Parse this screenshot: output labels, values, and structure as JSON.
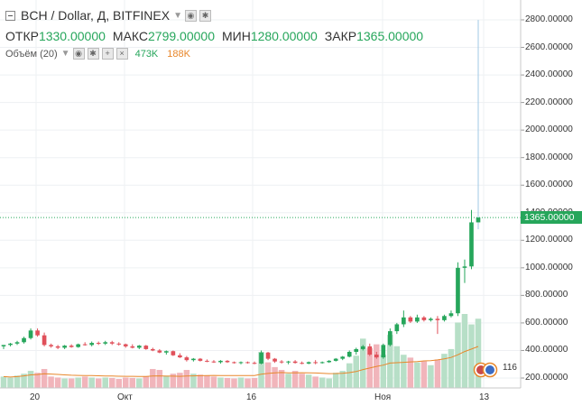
{
  "header": {
    "symbol_title": "BCH / Dollar, Д, BITFINEX",
    "ohlc": [
      {
        "label": "ОТКР",
        "value": "1330.00000"
      },
      {
        "label": "МАКС",
        "value": "2799.00000"
      },
      {
        "label": "МИН",
        "value": "1280.00000"
      },
      {
        "label": "ЗАКР",
        "value": "1365.00000"
      }
    ]
  },
  "volume": {
    "title": "Объём (20)",
    "value1": "473K",
    "value2": "188K"
  },
  "icons": {
    "collapse": "minus-square-icon",
    "caret": "chevron-down-icon",
    "eye": "eye-icon",
    "settings": "gear-icon",
    "plus": "plus-icon",
    "close": "close-icon",
    "events": "event-flag-icon"
  },
  "colors": {
    "up": "#26a65b",
    "down": "#e0505a",
    "vol_up": "#b7dfc7",
    "vol_down": "#f1b5bb",
    "ma": "#e8872b",
    "grid": "#eef0f3"
  },
  "price_axis": {
    "labels": [
      "2800.00000",
      "2600.00000",
      "2400.00000",
      "2200.00000",
      "2000.00000",
      "1800.00000",
      "1600.00000",
      "1400.00000",
      "1200.00000",
      "1000.00000",
      "800.00000",
      "600.00000",
      "400.00000",
      "200.00000"
    ],
    "last_price": "1365.00000"
  },
  "time_axis": {
    "labels": [
      "20",
      "Окт",
      "16",
      "Ноя",
      "13"
    ]
  },
  "events_count": "116",
  "chart_data": {
    "type": "candlestick",
    "ylim": [
      130,
      2980
    ],
    "candles": [
      {
        "o": 430,
        "h": 440,
        "l": 410,
        "c": 440,
        "v": 120
      },
      {
        "o": 440,
        "h": 455,
        "l": 430,
        "c": 450,
        "v": 110
      },
      {
        "o": 450,
        "h": 470,
        "l": 440,
        "c": 460,
        "v": 130
      },
      {
        "o": 460,
        "h": 500,
        "l": 450,
        "c": 490,
        "v": 150
      },
      {
        "o": 490,
        "h": 560,
        "l": 480,
        "c": 545,
        "v": 180
      },
      {
        "o": 545,
        "h": 560,
        "l": 500,
        "c": 510,
        "v": 160
      },
      {
        "o": 510,
        "h": 530,
        "l": 430,
        "c": 440,
        "v": 200
      },
      {
        "o": 440,
        "h": 450,
        "l": 420,
        "c": 430,
        "v": 120
      },
      {
        "o": 430,
        "h": 440,
        "l": 410,
        "c": 420,
        "v": 110
      },
      {
        "o": 420,
        "h": 440,
        "l": 410,
        "c": 435,
        "v": 100
      },
      {
        "o": 435,
        "h": 445,
        "l": 420,
        "c": 425,
        "v": 100
      },
      {
        "o": 425,
        "h": 450,
        "l": 420,
        "c": 445,
        "v": 110
      },
      {
        "o": 445,
        "h": 460,
        "l": 435,
        "c": 440,
        "v": 120
      },
      {
        "o": 440,
        "h": 465,
        "l": 430,
        "c": 455,
        "v": 110
      },
      {
        "o": 455,
        "h": 465,
        "l": 440,
        "c": 450,
        "v": 100
      },
      {
        "o": 450,
        "h": 470,
        "l": 440,
        "c": 460,
        "v": 110
      },
      {
        "o": 460,
        "h": 470,
        "l": 440,
        "c": 450,
        "v": 105
      },
      {
        "o": 450,
        "h": 460,
        "l": 435,
        "c": 445,
        "v": 95
      },
      {
        "o": 445,
        "h": 450,
        "l": 420,
        "c": 430,
        "v": 110
      },
      {
        "o": 430,
        "h": 445,
        "l": 415,
        "c": 420,
        "v": 105
      },
      {
        "o": 420,
        "h": 440,
        "l": 410,
        "c": 435,
        "v": 100
      },
      {
        "o": 435,
        "h": 440,
        "l": 405,
        "c": 410,
        "v": 120
      },
      {
        "o": 410,
        "h": 420,
        "l": 395,
        "c": 400,
        "v": 200
      },
      {
        "o": 400,
        "h": 410,
        "l": 380,
        "c": 385,
        "v": 190
      },
      {
        "o": 385,
        "h": 400,
        "l": 370,
        "c": 395,
        "v": 130
      },
      {
        "o": 395,
        "h": 400,
        "l": 360,
        "c": 365,
        "v": 150
      },
      {
        "o": 365,
        "h": 380,
        "l": 345,
        "c": 350,
        "v": 160
      },
      {
        "o": 350,
        "h": 360,
        "l": 320,
        "c": 330,
        "v": 190
      },
      {
        "o": 330,
        "h": 345,
        "l": 320,
        "c": 340,
        "v": 150
      },
      {
        "o": 340,
        "h": 345,
        "l": 320,
        "c": 325,
        "v": 140
      },
      {
        "o": 325,
        "h": 335,
        "l": 315,
        "c": 320,
        "v": 130
      },
      {
        "o": 320,
        "h": 330,
        "l": 310,
        "c": 315,
        "v": 120
      },
      {
        "o": 315,
        "h": 330,
        "l": 305,
        "c": 325,
        "v": 110
      },
      {
        "o": 325,
        "h": 330,
        "l": 310,
        "c": 315,
        "v": 105
      },
      {
        "o": 315,
        "h": 320,
        "l": 305,
        "c": 310,
        "v": 100
      },
      {
        "o": 310,
        "h": 320,
        "l": 300,
        "c": 315,
        "v": 110
      },
      {
        "o": 315,
        "h": 320,
        "l": 305,
        "c": 310,
        "v": 100
      },
      {
        "o": 310,
        "h": 320,
        "l": 300,
        "c": 305,
        "v": 105
      },
      {
        "o": 305,
        "h": 400,
        "l": 300,
        "c": 385,
        "v": 380
      },
      {
        "o": 385,
        "h": 390,
        "l": 330,
        "c": 340,
        "v": 270
      },
      {
        "o": 340,
        "h": 345,
        "l": 310,
        "c": 320,
        "v": 220
      },
      {
        "o": 320,
        "h": 330,
        "l": 305,
        "c": 315,
        "v": 190
      },
      {
        "o": 315,
        "h": 325,
        "l": 300,
        "c": 320,
        "v": 150
      },
      {
        "o": 320,
        "h": 330,
        "l": 305,
        "c": 310,
        "v": 180
      },
      {
        "o": 310,
        "h": 320,
        "l": 300,
        "c": 305,
        "v": 150
      },
      {
        "o": 305,
        "h": 320,
        "l": 300,
        "c": 315,
        "v": 140
      },
      {
        "o": 315,
        "h": 330,
        "l": 300,
        "c": 310,
        "v": 120
      },
      {
        "o": 310,
        "h": 320,
        "l": 305,
        "c": 315,
        "v": 110
      },
      {
        "o": 315,
        "h": 330,
        "l": 310,
        "c": 325,
        "v": 100
      },
      {
        "o": 325,
        "h": 345,
        "l": 320,
        "c": 340,
        "v": 160
      },
      {
        "o": 340,
        "h": 360,
        "l": 330,
        "c": 355,
        "v": 180
      },
      {
        "o": 355,
        "h": 400,
        "l": 350,
        "c": 390,
        "v": 260
      },
      {
        "o": 390,
        "h": 420,
        "l": 370,
        "c": 410,
        "v": 340
      },
      {
        "o": 410,
        "h": 440,
        "l": 400,
        "c": 430,
        "v": 520
      },
      {
        "o": 430,
        "h": 450,
        "l": 360,
        "c": 370,
        "v": 420
      },
      {
        "o": 370,
        "h": 390,
        "l": 340,
        "c": 350,
        "v": 460
      },
      {
        "o": 350,
        "h": 450,
        "l": 340,
        "c": 440,
        "v": 350
      },
      {
        "o": 440,
        "h": 560,
        "l": 430,
        "c": 540,
        "v": 560
      },
      {
        "o": 540,
        "h": 600,
        "l": 520,
        "c": 590,
        "v": 440
      },
      {
        "o": 590,
        "h": 690,
        "l": 570,
        "c": 640,
        "v": 350
      },
      {
        "o": 640,
        "h": 650,
        "l": 600,
        "c": 610,
        "v": 320
      },
      {
        "o": 610,
        "h": 660,
        "l": 600,
        "c": 640,
        "v": 270
      },
      {
        "o": 640,
        "h": 650,
        "l": 610,
        "c": 620,
        "v": 280
      },
      {
        "o": 620,
        "h": 640,
        "l": 610,
        "c": 630,
        "v": 240
      },
      {
        "o": 630,
        "h": 650,
        "l": 520,
        "c": 620,
        "v": 300
      },
      {
        "o": 620,
        "h": 660,
        "l": 610,
        "c": 650,
        "v": 360
      },
      {
        "o": 650,
        "h": 690,
        "l": 640,
        "c": 670,
        "v": 410
      },
      {
        "o": 670,
        "h": 1040,
        "l": 650,
        "c": 1000,
        "v": 690
      },
      {
        "o": 1000,
        "h": 1060,
        "l": 890,
        "c": 1010,
        "v": 780
      },
      {
        "o": 1010,
        "h": 1420,
        "l": 990,
        "c": 1330,
        "v": 670
      },
      {
        "o": 1330,
        "h": 2799,
        "l": 1280,
        "c": 1365,
        "v": 730
      }
    ]
  }
}
